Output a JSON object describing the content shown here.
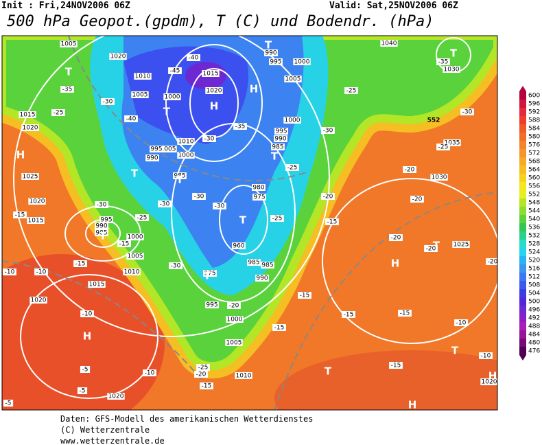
{
  "header": {
    "init": "Init : Fri,24NOV2006 06Z",
    "valid": "Valid: Sat,25NOV2006 06Z",
    "title": "500 hPa Geopot.(gpdm), T (C) und Bodendr. (hPa)"
  },
  "colorbar": {
    "levels": [
      600,
      596,
      592,
      588,
      584,
      580,
      576,
      572,
      568,
      564,
      560,
      556,
      552,
      548,
      544,
      540,
      536,
      532,
      528,
      524,
      520,
      516,
      512,
      508,
      504,
      500,
      496,
      492,
      488,
      484,
      480,
      476
    ],
    "colors": [
      "#b4003c",
      "#d2143c",
      "#e6283c",
      "#f03c28",
      "#f05a28",
      "#f06e28",
      "#f5822d",
      "#f5962d",
      "#f5aa28",
      "#f5be23",
      "#f5d21e",
      "#f5e61e",
      "#e6f01e",
      "#b4e628",
      "#8cdc32",
      "#5ad23c",
      "#32c850",
      "#28d28c",
      "#28dcc8",
      "#28d2f0",
      "#28b4f0",
      "#3c96f0",
      "#3c78f0",
      "#3c5af0",
      "#3c3ce6",
      "#5028dc",
      "#6e28d2",
      "#8c1ec8",
      "#aa1eb4",
      "#961496",
      "#780a78",
      "#500050"
    ]
  },
  "map": {
    "isobar_labels": [
      "1005",
      "1020",
      "1010",
      "1005",
      "1000",
      "1015",
      "1020",
      "1010",
      "1005",
      "1000",
      "995",
      "990",
      "985",
      "990",
      "995",
      "1000",
      "1005",
      "1000",
      "995",
      "990",
      "985",
      "980",
      "975",
      "960",
      "985",
      "985",
      "975",
      "990",
      "995",
      "1000",
      "1005",
      "1010",
      "1040",
      "1030",
      "1035",
      "1030",
      "1025",
      "1020",
      "1015",
      "1020",
      "1025",
      "1020",
      "1015",
      "995",
      "990",
      "985",
      "1000",
      "1005",
      "1010",
      "1015",
      "1020",
      "1020"
    ],
    "temperature_labels": [
      "-35",
      "-30",
      "-25",
      "-40",
      "-40",
      "-45",
      "-30",
      "-35",
      "-25",
      "-30",
      "-25",
      "-35",
      "-30",
      "-25",
      "-20",
      "-20",
      "-20",
      "-20",
      "-20",
      "-30",
      "-30",
      "-30",
      "-25",
      "-30",
      "-15",
      "-15",
      "-15",
      "-10",
      "-10",
      "-25",
      "-20",
      "-15",
      "-15",
      "-15",
      "-15",
      "-15",
      "-10",
      "-10",
      "-5",
      "-5",
      "-5",
      "-15",
      "-10",
      "-10",
      "-20",
      "-25",
      "-20",
      "-15",
      "-30"
    ],
    "pressure_centers": [
      "T",
      "T",
      "H",
      "H",
      "T",
      "T",
      "H",
      "T",
      "T",
      "T",
      "T",
      "T",
      "T",
      "H",
      "T",
      "T",
      "H",
      "T",
      "H",
      "H"
    ],
    "contour_label": "552"
  },
  "footer": [
    "Daten: GFS-Modell des amerikanischen Wetterdienstes",
    "(C) Wetterzentrale",
    "www.wetterzentrale.de"
  ]
}
